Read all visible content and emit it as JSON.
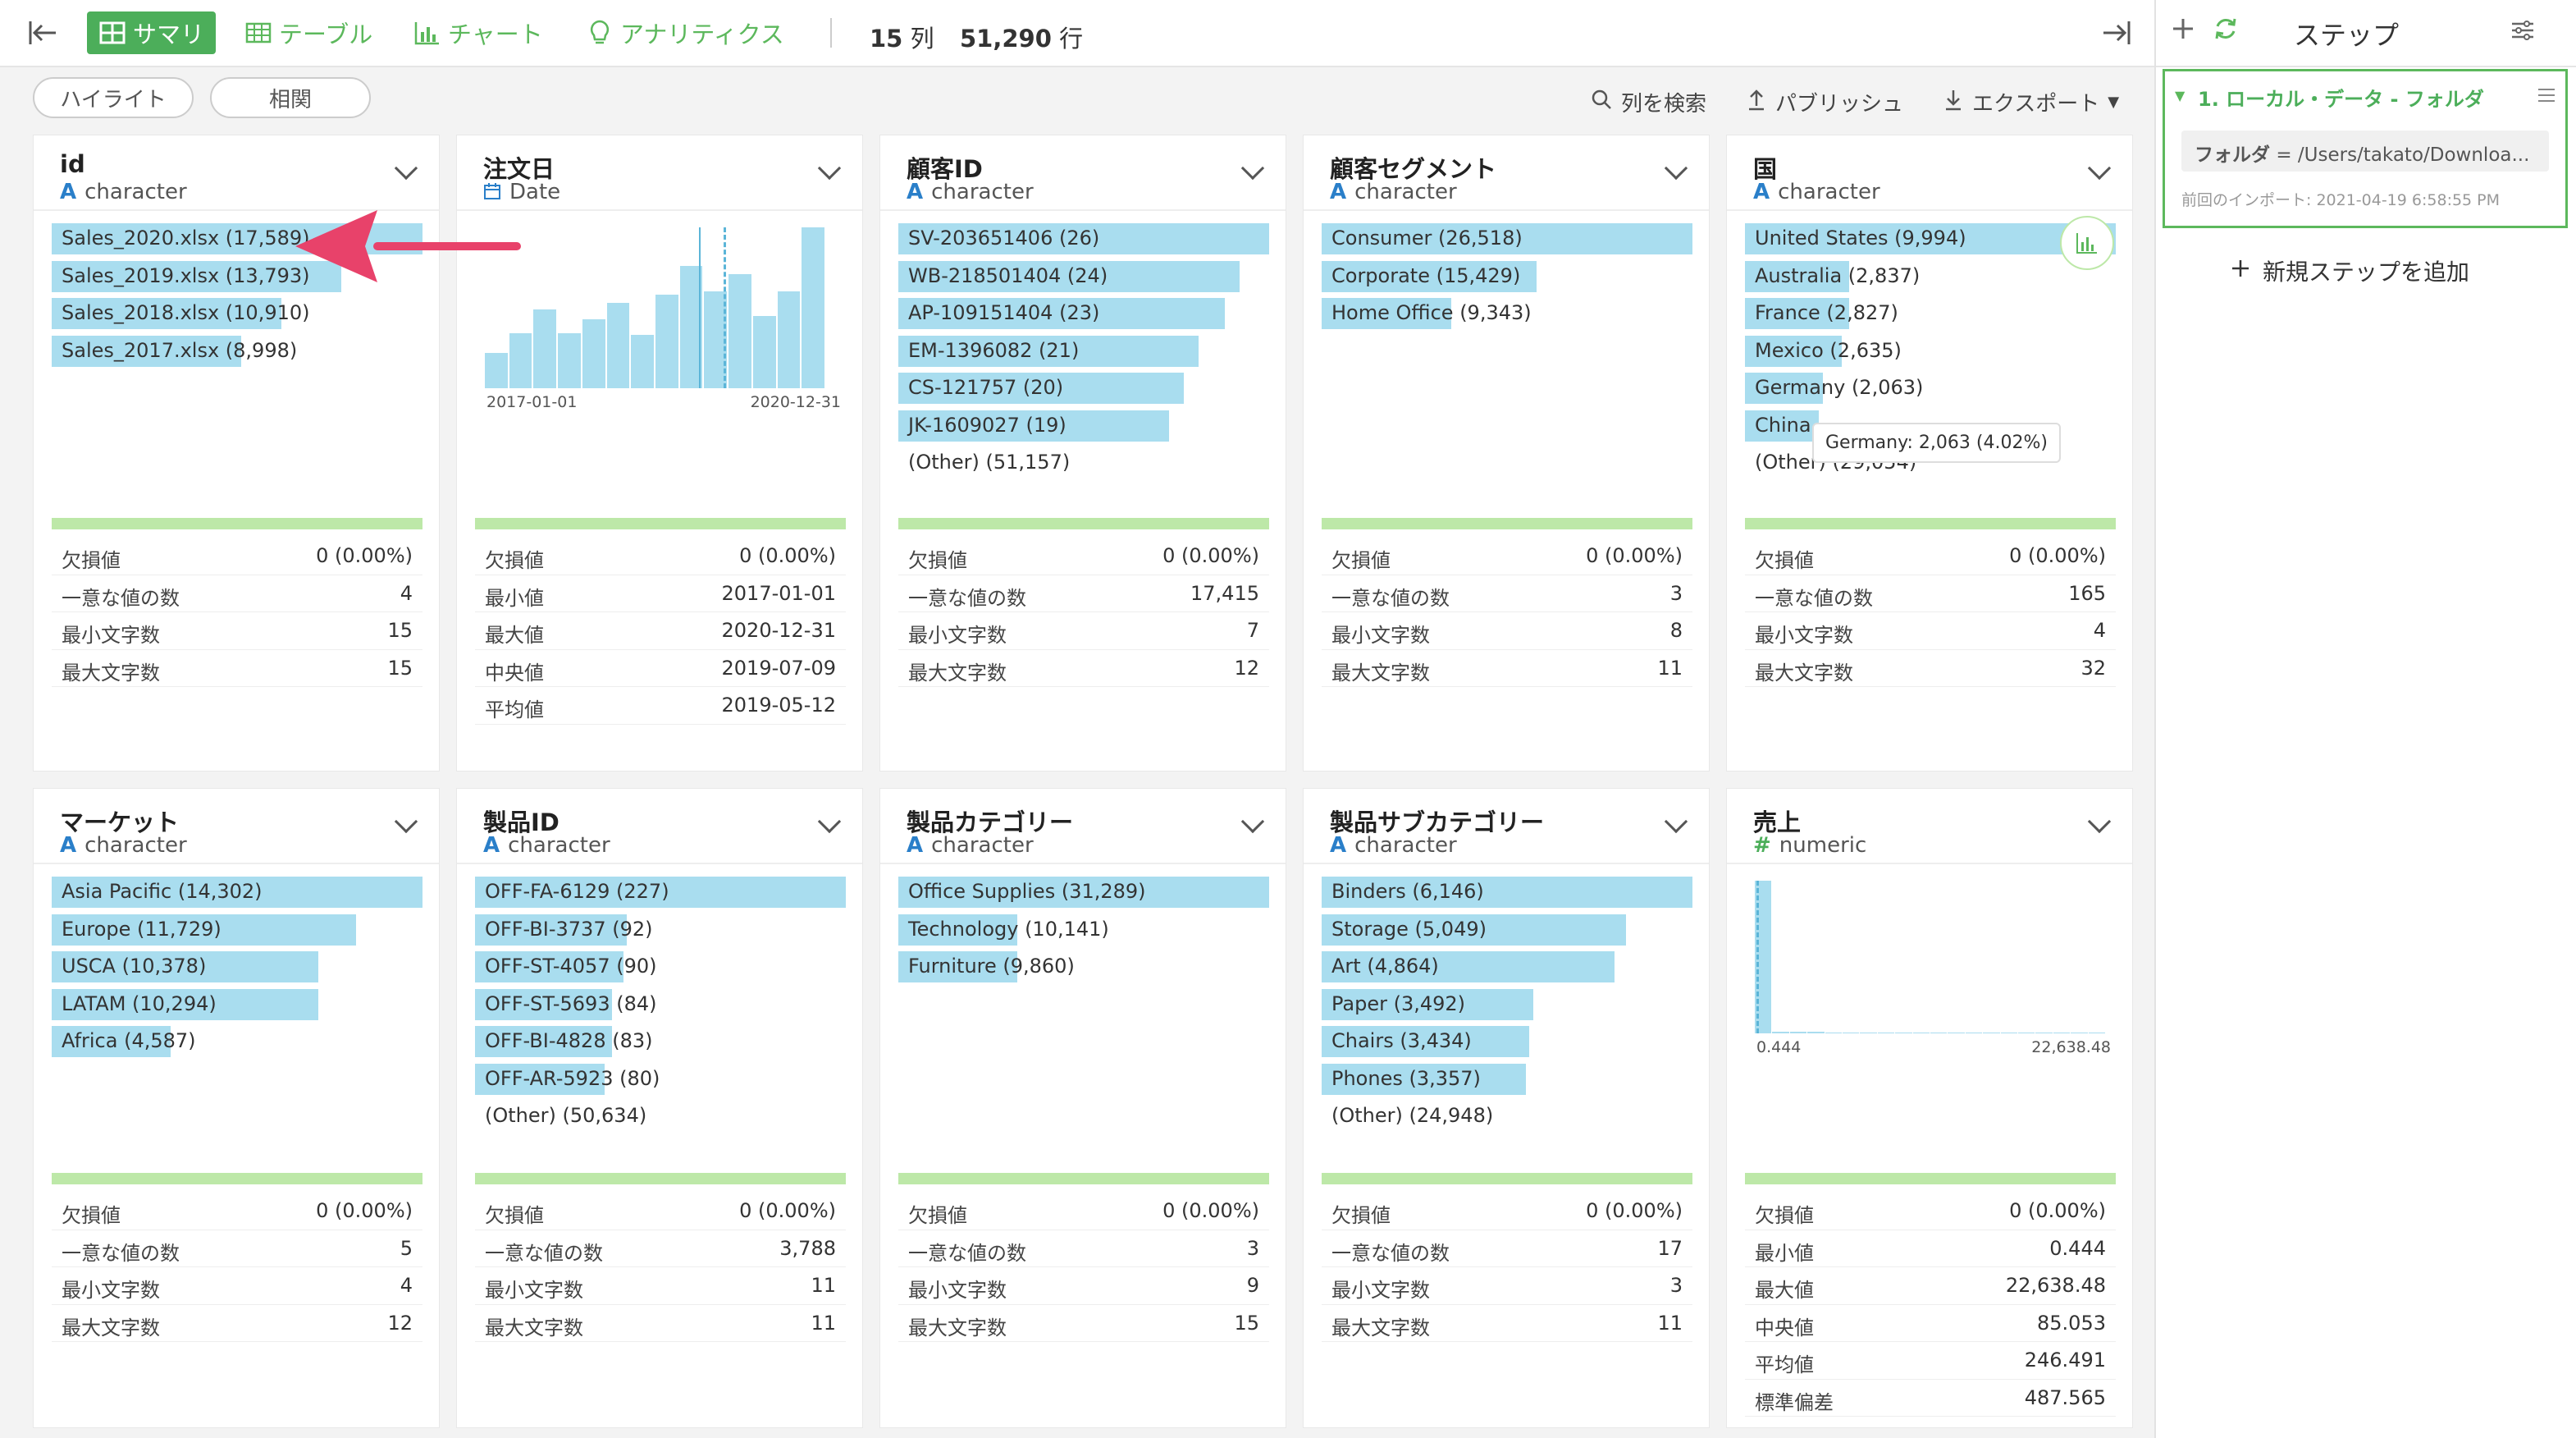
{
  "toolbar": {
    "summary": "サマリ",
    "table": "テーブル",
    "chart": "チャート",
    "analytics": "アナリティクス",
    "cols_num": "15",
    "cols_unit": "列",
    "rows_num": "51,290",
    "rows_unit": "行"
  },
  "subbar": {
    "highlight": "ハイライト",
    "correlation": "相関",
    "search": "列を検索",
    "publish": "パブリッシュ",
    "export": "エクスポート"
  },
  "colors": {
    "accent": "#4cae5a",
    "bar": "#a9ddef",
    "stat_line": "#bde8a8",
    "type_icon": "#2a7fc9"
  },
  "columns": [
    {
      "name": "id",
      "type_icon": "A",
      "type": "character",
      "bars": [
        {
          "label": "Sales_2020.xlsx (17,589)",
          "frac": 1.0
        },
        {
          "label": "Sales_2019.xlsx (13,793)",
          "frac": 0.78
        },
        {
          "label": "Sales_2018.xlsx (10,910)",
          "frac": 0.62
        },
        {
          "label": "Sales_2017.xlsx (8,998)",
          "frac": 0.51
        }
      ],
      "stats": [
        {
          "k": "欠損値",
          "v": "0 (0.00%)"
        },
        {
          "k": "一意な値の数",
          "v": "4"
        },
        {
          "k": "最小文字数",
          "v": "15"
        },
        {
          "k": "最大文字数",
          "v": "15"
        }
      ]
    },
    {
      "name": "注文日",
      "type_icon": "calendar-icon",
      "type": "Date",
      "hist": [
        0.22,
        0.34,
        0.49,
        0.34,
        0.43,
        0.53,
        0.33,
        0.58,
        0.76,
        0.6,
        0.71,
        0.45,
        0.6,
        1.0
      ],
      "x_min": "2017-01-01",
      "x_max": "2020-12-31",
      "stats": [
        {
          "k": "欠損値",
          "v": "0 (0.00%)"
        },
        {
          "k": "最小値",
          "v": "2017-01-01"
        },
        {
          "k": "最大値",
          "v": "2020-12-31"
        },
        {
          "k": "中央値",
          "v": "2019-07-09"
        },
        {
          "k": "平均値",
          "v": "2019-05-12"
        }
      ]
    },
    {
      "name": "顧客ID",
      "type_icon": "A",
      "type": "character",
      "bars": [
        {
          "label": "SV-203651406 (26)",
          "frac": 1.0
        },
        {
          "label": "WB-218501404 (24)",
          "frac": 0.92
        },
        {
          "label": "AP-109151404 (23)",
          "frac": 0.88
        },
        {
          "label": "EM-1396082 (21)",
          "frac": 0.81
        },
        {
          "label": "CS-121757 (20)",
          "frac": 0.77
        },
        {
          "label": "JK-1609027 (19)",
          "frac": 0.73
        }
      ],
      "other": "(Other) (51,157)",
      "stats": [
        {
          "k": "欠損値",
          "v": "0 (0.00%)"
        },
        {
          "k": "一意な値の数",
          "v": "17,415"
        },
        {
          "k": "最小文字数",
          "v": "7"
        },
        {
          "k": "最大文字数",
          "v": "12"
        }
      ]
    },
    {
      "name": "顧客セグメント",
      "type_icon": "A",
      "type": "character",
      "bars": [
        {
          "label": "Consumer (26,518)",
          "frac": 1.0
        },
        {
          "label": "Corporate (15,429)",
          "frac": 0.58
        },
        {
          "label": "Home Office (9,343)",
          "frac": 0.35
        }
      ],
      "stats": [
        {
          "k": "欠損値",
          "v": "0 (0.00%)"
        },
        {
          "k": "一意な値の数",
          "v": "3"
        },
        {
          "k": "最小文字数",
          "v": "8"
        },
        {
          "k": "最大文字数",
          "v": "11"
        }
      ]
    },
    {
      "name": "国",
      "type_icon": "A",
      "type": "character",
      "bars": [
        {
          "label": "United States (9,994)",
          "frac": 1.0
        },
        {
          "label": "Australia (2,837)",
          "frac": 0.28
        },
        {
          "label": "France (2,827)",
          "frac": 0.28
        },
        {
          "label": "Mexico (2,635)",
          "frac": 0.26
        },
        {
          "label": "Germany (2,063)",
          "frac": 0.21
        },
        {
          "label": "China",
          "frac": 0.2
        }
      ],
      "other": "(Other) (29,054)",
      "tooltip": "Germany: 2,063 (4.02%)",
      "stats": [
        {
          "k": "欠損値",
          "v": "0 (0.00%)"
        },
        {
          "k": "一意な値の数",
          "v": "165"
        },
        {
          "k": "最小文字数",
          "v": "4"
        },
        {
          "k": "最大文字数",
          "v": "32"
        }
      ]
    },
    {
      "name": "マーケット",
      "type_icon": "A",
      "type": "character",
      "bars": [
        {
          "label": "Asia Pacific (14,302)",
          "frac": 1.0
        },
        {
          "label": "Europe (11,729)",
          "frac": 0.82
        },
        {
          "label": "USCA (10,378)",
          "frac": 0.72
        },
        {
          "label": "LATAM (10,294)",
          "frac": 0.72
        },
        {
          "label": "Africa (4,587)",
          "frac": 0.32
        }
      ],
      "stats": [
        {
          "k": "欠損値",
          "v": "0 (0.00%)"
        },
        {
          "k": "一意な値の数",
          "v": "5"
        },
        {
          "k": "最小文字数",
          "v": "4"
        },
        {
          "k": "最大文字数",
          "v": "12"
        }
      ]
    },
    {
      "name": "製品ID",
      "type_icon": "A",
      "type": "character",
      "bars": [
        {
          "label": "OFF-FA-6129 (227)",
          "frac": 1.0
        },
        {
          "label": "OFF-BI-3737 (92)",
          "frac": 0.41
        },
        {
          "label": "OFF-ST-4057 (90)",
          "frac": 0.4
        },
        {
          "label": "OFF-ST-5693 (84)",
          "frac": 0.37
        },
        {
          "label": "OFF-BI-4828 (83)",
          "frac": 0.37
        },
        {
          "label": "OFF-AR-5923 (80)",
          "frac": 0.35
        }
      ],
      "other": "(Other) (50,634)",
      "stats": [
        {
          "k": "欠損値",
          "v": "0 (0.00%)"
        },
        {
          "k": "一意な値の数",
          "v": "3,788"
        },
        {
          "k": "最小文字数",
          "v": "11"
        },
        {
          "k": "最大文字数",
          "v": "11"
        }
      ]
    },
    {
      "name": "製品カテゴリー",
      "type_icon": "A",
      "type": "character",
      "bars": [
        {
          "label": "Office Supplies (31,289)",
          "frac": 1.0
        },
        {
          "label": "Technology (10,141)",
          "frac": 0.32
        },
        {
          "label": "Furniture (9,860)",
          "frac": 0.32
        }
      ],
      "stats": [
        {
          "k": "欠損値",
          "v": "0 (0.00%)"
        },
        {
          "k": "一意な値の数",
          "v": "3"
        },
        {
          "k": "最小文字数",
          "v": "9"
        },
        {
          "k": "最大文字数",
          "v": "15"
        }
      ]
    },
    {
      "name": "製品サブカテゴリー",
      "type_icon": "A",
      "type": "character",
      "bars": [
        {
          "label": "Binders (6,146)",
          "frac": 1.0
        },
        {
          "label": "Storage (5,049)",
          "frac": 0.82
        },
        {
          "label": "Art (4,864)",
          "frac": 0.79
        },
        {
          "label": "Paper (3,492)",
          "frac": 0.57
        },
        {
          "label": "Chairs (3,434)",
          "frac": 0.56
        },
        {
          "label": "Phones (3,357)",
          "frac": 0.55
        }
      ],
      "other": "(Other) (24,948)",
      "stats": [
        {
          "k": "欠損値",
          "v": "0 (0.00%)"
        },
        {
          "k": "一意な値の数",
          "v": "17"
        },
        {
          "k": "最小文字数",
          "v": "3"
        },
        {
          "k": "最大文字数",
          "v": "11"
        }
      ]
    },
    {
      "name": "売上",
      "type_icon": "#",
      "type": "numeric",
      "hist": [
        1.0,
        0.012,
        0.012,
        0.012,
        0.008,
        0.008,
        0.008,
        0.006,
        0.004,
        0.004,
        0.004,
        0.004,
        0.004,
        0.004,
        0.004,
        0.004,
        0.004,
        0.004,
        0.004,
        0.004
      ],
      "x_min": "0.444",
      "x_max": "22,638.48",
      "stats": [
        {
          "k": "欠損値",
          "v": "0 (0.00%)"
        },
        {
          "k": "最小値",
          "v": "0.444"
        },
        {
          "k": "最大値",
          "v": "22,638.48"
        },
        {
          "k": "中央値",
          "v": "85.053"
        },
        {
          "k": "平均値",
          "v": "246.491"
        },
        {
          "k": "標準偏差",
          "v": "487.565"
        }
      ]
    }
  ],
  "steps": {
    "title": "ステップ",
    "step1_title": "1. ローカル・データ - フォルダ",
    "step1_param_key": "フォルダ",
    "step1_param_val": "= /Users/takato/Downloa...",
    "step1_import": "前回のインポート: 2021-04-19 6:58:55 PM",
    "add_step": "新規ステップを追加"
  }
}
